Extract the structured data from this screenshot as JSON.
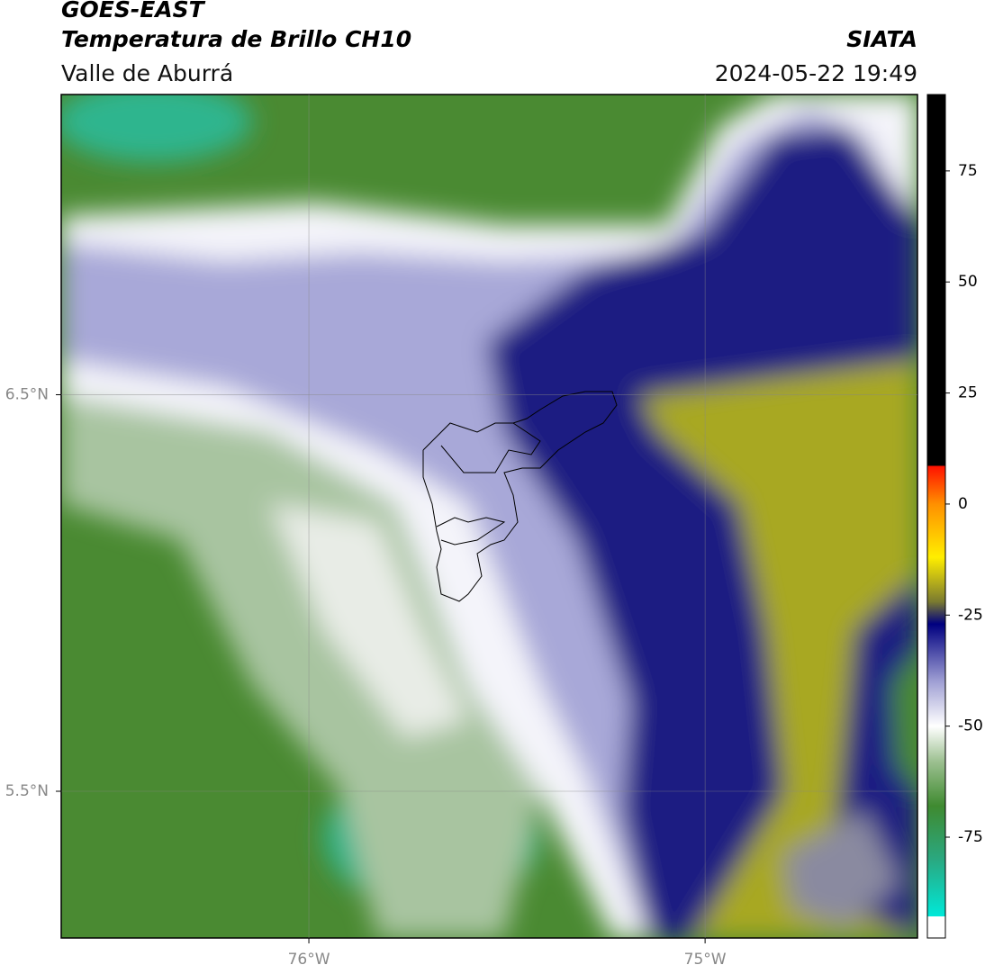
{
  "header": {
    "title": "GOES-EAST",
    "subtitle": "Temperatura de Brillo CH10",
    "source": "SIATA",
    "region": "Valle de Aburrá",
    "datetime": "2024-05-22 19:49"
  },
  "map": {
    "xlim": [
      -76.625,
      -74.464
    ],
    "ylim": [
      5.13,
      7.257
    ],
    "xticks": [
      {
        "value": -76,
        "label": "76°W"
      },
      {
        "value": -75,
        "label": "75°W"
      }
    ],
    "yticks": [
      {
        "value": 6.5,
        "label": "6.5°N"
      },
      {
        "value": 5.5,
        "label": "5.5°N"
      }
    ],
    "grid": true
  },
  "colorbar": {
    "lim": [
      -97.7,
      92.2
    ],
    "ticks": [
      75,
      50,
      25,
      0,
      -25,
      -50,
      -75
    ],
    "stops": [
      {
        "value": -97.7,
        "color": "#ffffff"
      },
      {
        "value": -92.8,
        "color": "#ffffff"
      },
      {
        "value": -92.8,
        "color": "#00e8d8"
      },
      {
        "value": -80,
        "color": "#2aa880"
      },
      {
        "value": -68,
        "color": "#3f8a30"
      },
      {
        "value": -58,
        "color": "#9cc090"
      },
      {
        "value": -50,
        "color": "#ffffff"
      },
      {
        "value": -40,
        "color": "#a0a0d4"
      },
      {
        "value": -27,
        "color": "#000080"
      },
      {
        "value": -22,
        "color": "#7a7a30"
      },
      {
        "value": -12,
        "color": "#ffee00"
      },
      {
        "value": 0,
        "color": "#ff9000"
      },
      {
        "value": 8.6,
        "color": "#ff1000"
      },
      {
        "value": 8.6,
        "color": "#000000"
      },
      {
        "value": 92.2,
        "color": "#000000"
      }
    ]
  }
}
